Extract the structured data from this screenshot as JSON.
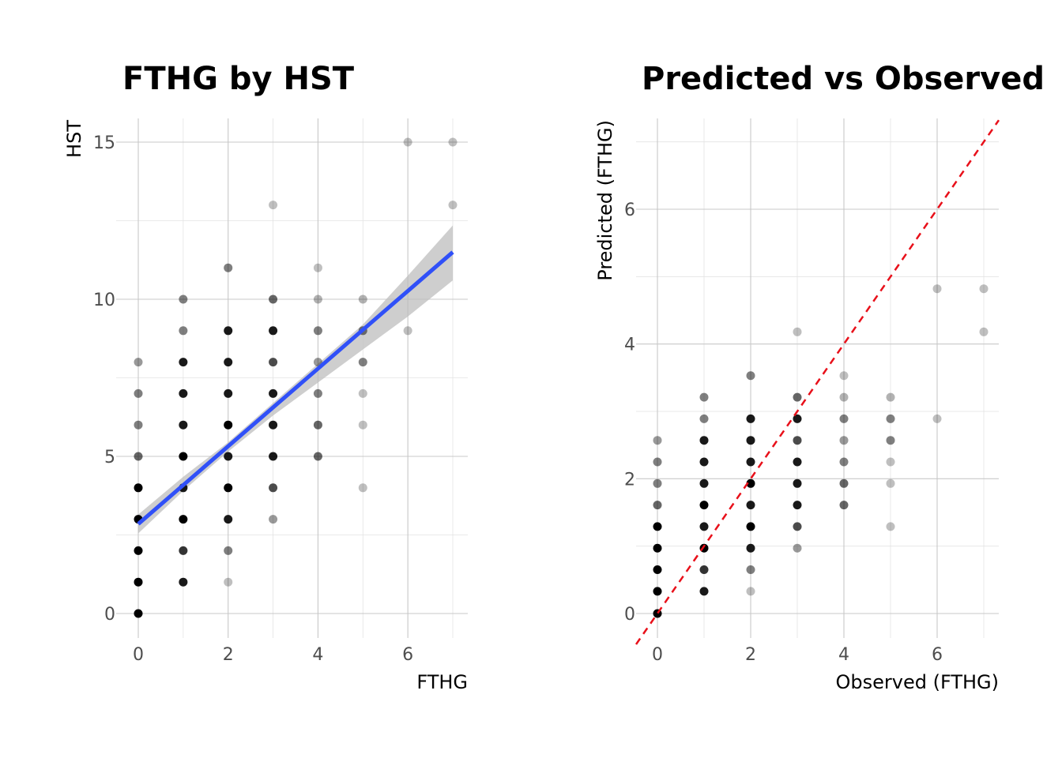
{
  "chart_data": [
    {
      "type": "scatter",
      "title": "FTHG by HST",
      "xlabel": "FTHG",
      "ylabel": "HST",
      "xlim": [
        0,
        7
      ],
      "ylim": [
        0,
        15
      ],
      "xticks": [
        0,
        2,
        4,
        6
      ],
      "yticks": [
        0,
        5,
        10,
        15
      ],
      "grid": true,
      "point_color": "#000000",
      "points": [
        {
          "x": 0,
          "y": 0,
          "a": 1.0
        },
        {
          "x": 0,
          "y": 1,
          "a": 1.0
        },
        {
          "x": 0,
          "y": 2,
          "a": 1.0
        },
        {
          "x": 0,
          "y": 3,
          "a": 1.0
        },
        {
          "x": 0,
          "y": 4,
          "a": 1.0
        },
        {
          "x": 0,
          "y": 5,
          "a": 0.6
        },
        {
          "x": 0,
          "y": 6,
          "a": 0.5
        },
        {
          "x": 0,
          "y": 7,
          "a": 0.5
        },
        {
          "x": 0,
          "y": 8,
          "a": 0.4
        },
        {
          "x": 1,
          "y": 1,
          "a": 0.9
        },
        {
          "x": 1,
          "y": 2,
          "a": 0.8
        },
        {
          "x": 1,
          "y": 3,
          "a": 1.0
        },
        {
          "x": 1,
          "y": 4,
          "a": 0.9
        },
        {
          "x": 1,
          "y": 5,
          "a": 1.0
        },
        {
          "x": 1,
          "y": 6,
          "a": 0.9
        },
        {
          "x": 1,
          "y": 7,
          "a": 0.9
        },
        {
          "x": 1,
          "y": 8,
          "a": 0.9
        },
        {
          "x": 1,
          "y": 9,
          "a": 0.5
        },
        {
          "x": 1,
          "y": 10,
          "a": 0.5
        },
        {
          "x": 2,
          "y": 1,
          "a": 0.25
        },
        {
          "x": 2,
          "y": 2,
          "a": 0.5
        },
        {
          "x": 2,
          "y": 3,
          "a": 0.9
        },
        {
          "x": 2,
          "y": 4,
          "a": 1.0
        },
        {
          "x": 2,
          "y": 5,
          "a": 0.9
        },
        {
          "x": 2,
          "y": 6,
          "a": 1.0
        },
        {
          "x": 2,
          "y": 7,
          "a": 0.9
        },
        {
          "x": 2,
          "y": 8,
          "a": 0.9
        },
        {
          "x": 2,
          "y": 9,
          "a": 0.9
        },
        {
          "x": 2,
          "y": 11,
          "a": 0.5
        },
        {
          "x": 3,
          "y": 3,
          "a": 0.4
        },
        {
          "x": 3,
          "y": 4,
          "a": 0.7
        },
        {
          "x": 3,
          "y": 5,
          "a": 0.9
        },
        {
          "x": 3,
          "y": 6,
          "a": 0.9
        },
        {
          "x": 3,
          "y": 7,
          "a": 0.9
        },
        {
          "x": 3,
          "y": 8,
          "a": 0.7
        },
        {
          "x": 3,
          "y": 9,
          "a": 0.9
        },
        {
          "x": 3,
          "y": 10,
          "a": 0.6
        },
        {
          "x": 3,
          "y": 13,
          "a": 0.25
        },
        {
          "x": 4,
          "y": 5,
          "a": 0.6
        },
        {
          "x": 4,
          "y": 6,
          "a": 0.6
        },
        {
          "x": 4,
          "y": 7,
          "a": 0.5
        },
        {
          "x": 4,
          "y": 8,
          "a": 0.4
        },
        {
          "x": 4,
          "y": 9,
          "a": 0.5
        },
        {
          "x": 4,
          "y": 10,
          "a": 0.3
        },
        {
          "x": 4,
          "y": 11,
          "a": 0.25
        },
        {
          "x": 5,
          "y": 4,
          "a": 0.25
        },
        {
          "x": 5,
          "y": 6,
          "a": 0.25
        },
        {
          "x": 5,
          "y": 7,
          "a": 0.25
        },
        {
          "x": 5,
          "y": 8,
          "a": 0.5
        },
        {
          "x": 5,
          "y": 9,
          "a": 0.5
        },
        {
          "x": 5,
          "y": 10,
          "a": 0.3
        },
        {
          "x": 6,
          "y": 9,
          "a": 0.25
        },
        {
          "x": 6,
          "y": 15,
          "a": 0.25
        },
        {
          "x": 7,
          "y": 13,
          "a": 0.25
        },
        {
          "x": 7,
          "y": 15,
          "a": 0.25
        }
      ],
      "fit_line": {
        "color": "#3050f8",
        "x": [
          0,
          7
        ],
        "y": [
          2.85,
          11.5
        ]
      },
      "confidence_band": {
        "color": "#bebebe",
        "x": [
          0,
          1,
          2,
          3,
          4,
          5,
          6,
          7
        ],
        "lower": [
          2.55,
          3.9,
          5.15,
          6.3,
          7.35,
          8.4,
          9.45,
          10.6
        ],
        "upper": [
          3.15,
          4.35,
          5.45,
          6.7,
          7.95,
          9.2,
          10.75,
          12.35
        ]
      }
    },
    {
      "type": "scatter",
      "title": "Predicted vs Observed",
      "xlabel": "Observed (FTHG)",
      "ylabel": "Predicted (FTHG)",
      "xlim": [
        0,
        7
      ],
      "ylim": [
        0,
        7
      ],
      "xticks": [
        0,
        2,
        4,
        6
      ],
      "yticks": [
        0,
        2,
        4,
        6
      ],
      "grid": true,
      "point_color": "#000000",
      "points": [
        {
          "x": 0,
          "y": 0.0,
          "a": 1.0
        },
        {
          "x": 0,
          "y": 0.33,
          "a": 1.0
        },
        {
          "x": 0,
          "y": 0.65,
          "a": 1.0
        },
        {
          "x": 0,
          "y": 0.97,
          "a": 1.0
        },
        {
          "x": 0,
          "y": 1.29,
          "a": 1.0
        },
        {
          "x": 0,
          "y": 1.61,
          "a": 0.6
        },
        {
          "x": 0,
          "y": 1.93,
          "a": 0.5
        },
        {
          "x": 0,
          "y": 2.25,
          "a": 0.5
        },
        {
          "x": 0,
          "y": 2.57,
          "a": 0.4
        },
        {
          "x": 1,
          "y": 0.33,
          "a": 0.9
        },
        {
          "x": 1,
          "y": 0.65,
          "a": 0.8
        },
        {
          "x": 1,
          "y": 0.97,
          "a": 1.0
        },
        {
          "x": 1,
          "y": 1.29,
          "a": 0.9
        },
        {
          "x": 1,
          "y": 1.61,
          "a": 1.0
        },
        {
          "x": 1,
          "y": 1.93,
          "a": 0.9
        },
        {
          "x": 1,
          "y": 2.25,
          "a": 0.9
        },
        {
          "x": 1,
          "y": 2.57,
          "a": 0.9
        },
        {
          "x": 1,
          "y": 2.89,
          "a": 0.5
        },
        {
          "x": 1,
          "y": 3.21,
          "a": 0.5
        },
        {
          "x": 2,
          "y": 0.33,
          "a": 0.25
        },
        {
          "x": 2,
          "y": 0.65,
          "a": 0.5
        },
        {
          "x": 2,
          "y": 0.97,
          "a": 0.9
        },
        {
          "x": 2,
          "y": 1.29,
          "a": 1.0
        },
        {
          "x": 2,
          "y": 1.61,
          "a": 0.9
        },
        {
          "x": 2,
          "y": 1.93,
          "a": 1.0
        },
        {
          "x": 2,
          "y": 2.25,
          "a": 0.9
        },
        {
          "x": 2,
          "y": 2.57,
          "a": 0.9
        },
        {
          "x": 2,
          "y": 2.89,
          "a": 0.9
        },
        {
          "x": 2,
          "y": 3.53,
          "a": 0.5
        },
        {
          "x": 3,
          "y": 0.97,
          "a": 0.4
        },
        {
          "x": 3,
          "y": 1.29,
          "a": 0.7
        },
        {
          "x": 3,
          "y": 1.61,
          "a": 0.9
        },
        {
          "x": 3,
          "y": 1.93,
          "a": 0.9
        },
        {
          "x": 3,
          "y": 2.25,
          "a": 0.9
        },
        {
          "x": 3,
          "y": 2.57,
          "a": 0.7
        },
        {
          "x": 3,
          "y": 2.89,
          "a": 0.9
        },
        {
          "x": 3,
          "y": 3.21,
          "a": 0.6
        },
        {
          "x": 3,
          "y": 4.18,
          "a": 0.25
        },
        {
          "x": 4,
          "y": 1.61,
          "a": 0.6
        },
        {
          "x": 4,
          "y": 1.93,
          "a": 0.6
        },
        {
          "x": 4,
          "y": 2.25,
          "a": 0.5
        },
        {
          "x": 4,
          "y": 2.57,
          "a": 0.4
        },
        {
          "x": 4,
          "y": 2.89,
          "a": 0.5
        },
        {
          "x": 4,
          "y": 3.21,
          "a": 0.3
        },
        {
          "x": 4,
          "y": 3.53,
          "a": 0.25
        },
        {
          "x": 5,
          "y": 1.29,
          "a": 0.25
        },
        {
          "x": 5,
          "y": 1.93,
          "a": 0.25
        },
        {
          "x": 5,
          "y": 2.25,
          "a": 0.25
        },
        {
          "x": 5,
          "y": 2.57,
          "a": 0.5
        },
        {
          "x": 5,
          "y": 2.89,
          "a": 0.5
        },
        {
          "x": 5,
          "y": 3.21,
          "a": 0.3
        },
        {
          "x": 6,
          "y": 2.89,
          "a": 0.25
        },
        {
          "x": 6,
          "y": 4.82,
          "a": 0.25
        },
        {
          "x": 7,
          "y": 4.18,
          "a": 0.25
        },
        {
          "x": 7,
          "y": 4.82,
          "a": 0.25
        }
      ],
      "reference_line": {
        "color": "#e8101a",
        "style": "dashed",
        "slope": 1,
        "intercept": 0
      }
    }
  ]
}
